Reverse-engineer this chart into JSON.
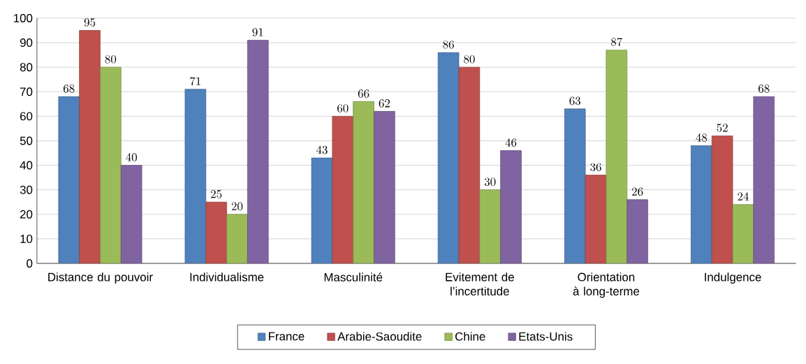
{
  "chart_data": {
    "type": "bar",
    "categories": [
      "Distance du pouvoir",
      "Individualisme",
      "Masculinité",
      "Evitement de l’incertitude",
      "Orientation à long-terme",
      "Indulgence"
    ],
    "series": [
      {
        "name": "France",
        "color": "#4f81bd",
        "values": [
          68,
          71,
          43,
          86,
          63,
          48
        ]
      },
      {
        "name": "Arabie-Saoudite",
        "color": "#c0504d",
        "values": [
          95,
          25,
          60,
          80,
          36,
          52
        ]
      },
      {
        "name": "Chine",
        "color": "#9bbb59",
        "values": [
          80,
          20,
          66,
          30,
          87,
          24
        ]
      },
      {
        "name": "Etats-Unis",
        "color": "#8064a2",
        "values": [
          40,
          91,
          62,
          46,
          26,
          68
        ]
      }
    ],
    "ylim": [
      0,
      100
    ],
    "yticks": [
      0,
      10,
      20,
      30,
      40,
      50,
      60,
      70,
      80,
      90,
      100
    ],
    "grid": "y",
    "legend": "bottom",
    "data_labels": true
  }
}
